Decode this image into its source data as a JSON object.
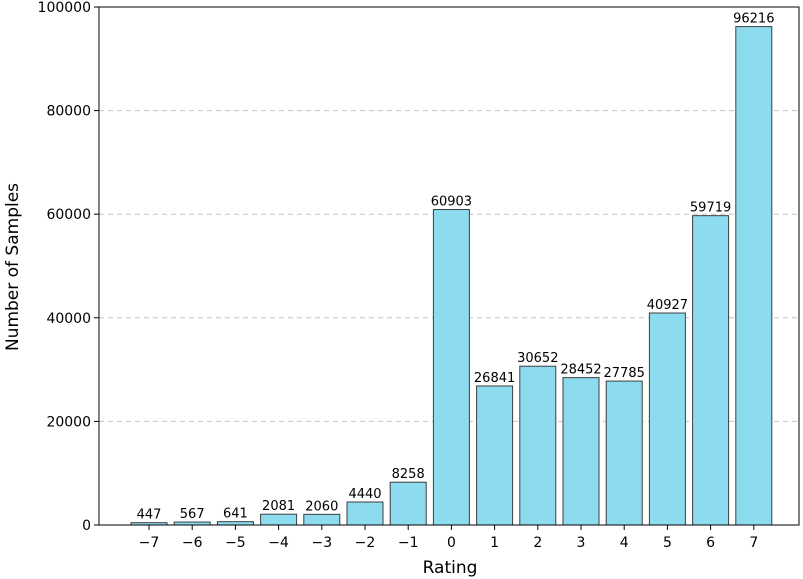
{
  "chart_data": {
    "type": "bar",
    "title": "",
    "xlabel": "Rating",
    "ylabel": "Number of Samples",
    "categories": [
      "−7",
      "−6",
      "−5",
      "−4",
      "−3",
      "−2",
      "−1",
      "0",
      "1",
      "2",
      "3",
      "4",
      "5",
      "6",
      "7"
    ],
    "values": [
      447,
      567,
      641,
      2081,
      2060,
      4440,
      8258,
      60903,
      26841,
      30652,
      28452,
      27785,
      40927,
      59719,
      96216
    ],
    "data_labels": [
      "447",
      "567",
      "641",
      "2081",
      "2060",
      "4440",
      "8258",
      "60903",
      "26841",
      "30652",
      "28452",
      "27785",
      "40927",
      "59719",
      "96216"
    ],
    "ylim": [
      0,
      100000
    ],
    "yticks": [
      0,
      20000,
      40000,
      60000,
      80000,
      100000
    ],
    "ytick_labels": [
      "0",
      "20000",
      "40000",
      "60000",
      "80000",
      "100000"
    ],
    "grid": "horizontal dashed",
    "colors": {
      "bar_fill": "#8ddbef",
      "bar_edge": "#3e3e3e",
      "grid": "#c4c4c4",
      "axis": "#000000"
    }
  }
}
